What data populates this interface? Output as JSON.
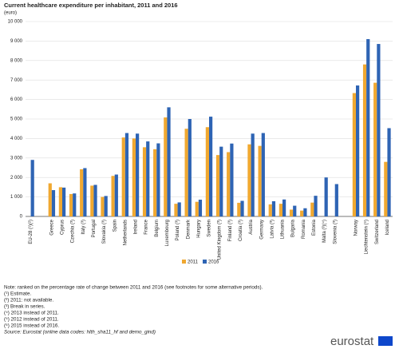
{
  "chart_data": {
    "type": "bar",
    "title": "Current healthcare expenditure per inhabitant, 2011 and 2016",
    "y_label": "(euro)",
    "categories": [
      "EU-28 (¹)(²)",
      null,
      "Greece",
      "Cyprus",
      "Czechia (³)",
      "Italy (³)",
      "Portugal",
      "Slovakia (³)",
      "Spain",
      "Netherlands",
      "Ireland",
      "France",
      "Belgium",
      "Luxembourg",
      "Poland (³)",
      "Denmark",
      "Hungary",
      "Sweden",
      "United Kingdom (³)",
      "Finland (³)",
      "Croatia (³)",
      "Austria",
      "Germany",
      "Latvia (³)",
      "Lithuania",
      "Bulgaria",
      "Romania",
      "Estonia",
      "Malta (³)(⁴)",
      "Slovenia (³)",
      null,
      "Norway",
      "Liechtenstein (⁵)",
      "Switzerland",
      "Iceland"
    ],
    "series": [
      {
        "name": "2011",
        "color": "#f0a830",
        "values": [
          null,
          null,
          1700,
          1500,
          1150,
          2420,
          1580,
          1000,
          2080,
          4050,
          4000,
          3550,
          3450,
          5080,
          650,
          4500,
          750,
          4580,
          3150,
          3300,
          700,
          3700,
          3620,
          620,
          650,
          350,
          300,
          710,
          null,
          null,
          null,
          6330,
          7800,
          6860,
          2800
        ]
      },
      {
        "name": "2016",
        "color": "#2e64b4",
        "values": [
          2900,
          null,
          1350,
          1480,
          1180,
          2480,
          1620,
          1050,
          2150,
          4280,
          4250,
          3850,
          3750,
          5600,
          720,
          5000,
          860,
          5120,
          3580,
          3740,
          800,
          4250,
          4280,
          780,
          870,
          550,
          420,
          1060,
          2000,
          1660,
          null,
          6720,
          9100,
          8850,
          4530
        ]
      }
    ],
    "ylim": [
      0,
      10000
    ],
    "yticks": [
      0,
      {
        "value": 1000,
        "label": "1 000"
      },
      {
        "value": 2000,
        "label": "2 000"
      },
      {
        "value": 3000,
        "label": "3 000"
      },
      {
        "value": 4000,
        "label": "4 000"
      },
      {
        "value": 5000,
        "label": "5 000"
      },
      {
        "value": 6000,
        "label": "6 000"
      },
      {
        "value": 7000,
        "label": "7 000"
      },
      {
        "value": 8000,
        "label": "8 000"
      },
      {
        "value": 9000,
        "label": "9 000"
      },
      {
        "value": 10000,
        "label": "10 000"
      }
    ],
    "grid": true,
    "notes": [
      "Note: ranked on the percentage rate of change between 2011 and 2016 (see footnotes for some alternative periods).",
      "(¹) Estimate.",
      "(²) 2011: not available.",
      "(³) Break in series.",
      "(⁴) 2013 instead of 2011.",
      "(⁵) 2012 instead of 2011.",
      "(⁶) 2015 instead of 2016."
    ],
    "source": "Source: Eurostat (online data codes: hlth_sha11_hf and demo_gind)",
    "logo": "eurostat"
  }
}
